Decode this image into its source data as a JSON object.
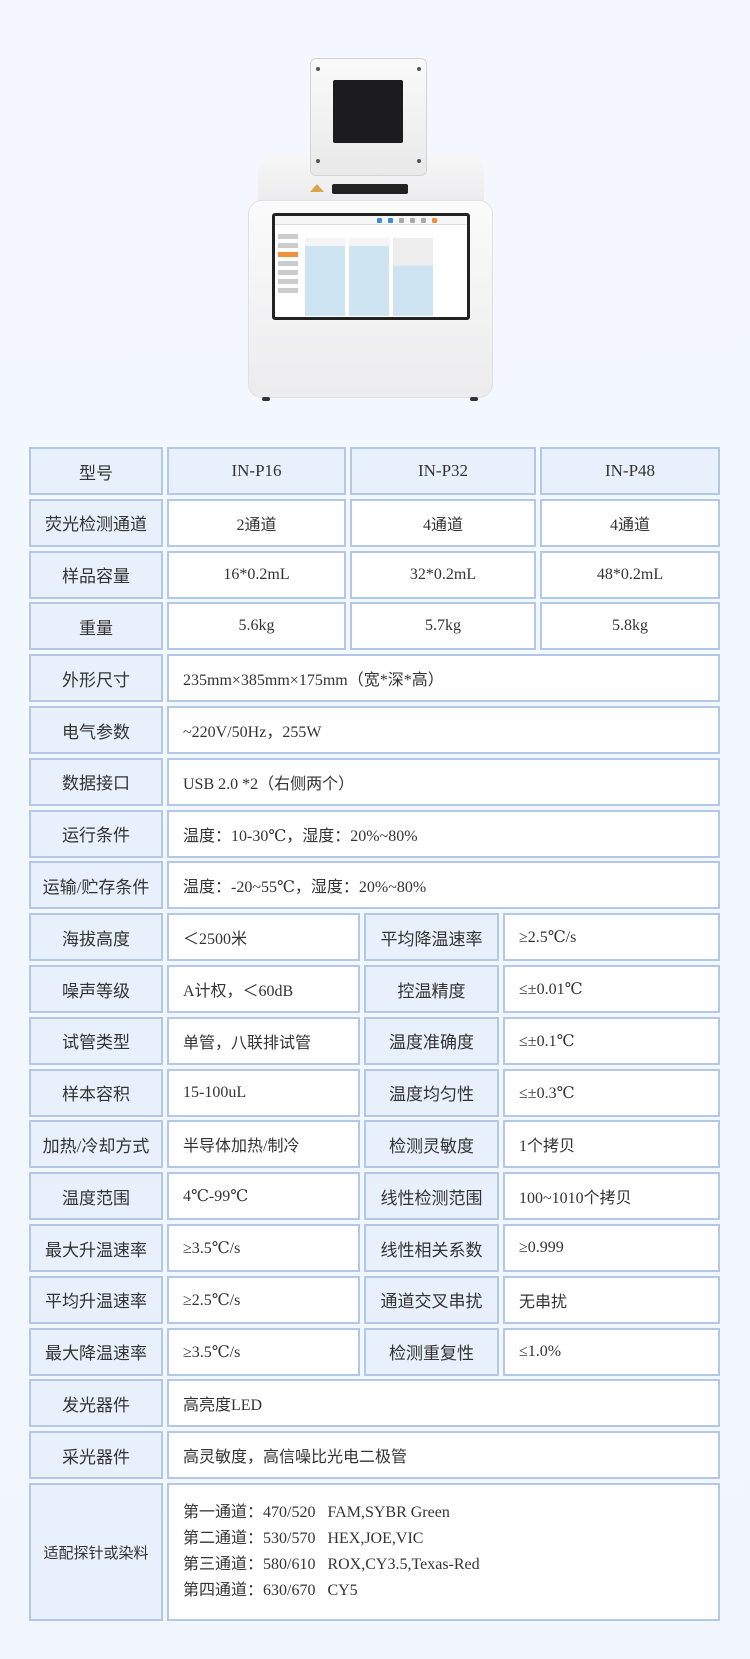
{
  "header": {
    "model_label": "型号",
    "models": [
      "IN-P16",
      "IN-P32",
      "IN-P48"
    ]
  },
  "rows3": [
    {
      "label": "荧光检测通道",
      "values": [
        "2通道",
        "4通道",
        "4通道"
      ]
    },
    {
      "label": "样品容量",
      "values": [
        "16*0.2mL",
        "32*0.2mL",
        "48*0.2mL"
      ]
    },
    {
      "label": "重量",
      "values": [
        "5.6kg",
        "5.7kg",
        "5.8kg"
      ]
    }
  ],
  "rows_full": [
    {
      "label": "外形尺寸",
      "value": "235mm×385mm×175mm（宽*深*高）"
    },
    {
      "label": "电气参数",
      "value": "~220V/50Hz，255W"
    },
    {
      "label": "数据接口",
      "value": "USB 2.0 *2（右侧两个）"
    },
    {
      "label": "运行条件",
      "value": "温度：10-30℃，湿度：20%~80%"
    },
    {
      "label": "运输/贮存条件",
      "value": "温度：-20~55℃，湿度：20%~80%"
    }
  ],
  "rows_split": [
    {
      "label": "海拔高度",
      "value": "＜2500米",
      "label2": "平均降温速率",
      "value2": "≥2.5℃/s"
    },
    {
      "label": "噪声等级",
      "value": "A计权，＜60dB",
      "label2": "控温精度",
      "value2": "≤±0.01℃"
    },
    {
      "label": "试管类型",
      "value": "单管，八联排试管",
      "label2": "温度准确度",
      "value2": "≤±0.1℃"
    },
    {
      "label": "样本容积",
      "value": "15-100uL",
      "label2": "温度均匀性",
      "value2": "≤±0.3℃"
    },
    {
      "label": "加热/冷却方式",
      "value": "半导体加热/制冷",
      "label2": "检测灵敏度",
      "value2": "1个拷贝"
    },
    {
      "label": "温度范围",
      "value": "4℃-99℃",
      "label2": "线性检测范围",
      "value2": "100~1010个拷贝"
    },
    {
      "label": "最大升温速率",
      "value": "≥3.5℃/s",
      "label2": "线性相关系数",
      "value2": "≥0.999"
    },
    {
      "label": "平均升温速率",
      "value": "≥2.5℃/s",
      "label2": "通道交叉串扰",
      "value2": "无串扰"
    },
    {
      "label": "最大降温速率",
      "value": "≥3.5℃/s",
      "label2": "检测重复性",
      "value2": "≤1.0%"
    }
  ],
  "rows_tail": [
    {
      "label": "发光器件",
      "value": "高亮度LED"
    },
    {
      "label": "采光器件",
      "value": "高灵敏度，高信噪比光电二极管"
    }
  ],
  "dyes": {
    "label": "适配探针或染料",
    "lines": [
      "第一通道：470/520   FAM,SYBR Green",
      "第二通道：530/570   HEX,JOE,VIC",
      "第三通道：580/610   ROX,CY3.5,Texas-Red",
      "第四通道：630/670   CY5"
    ]
  }
}
